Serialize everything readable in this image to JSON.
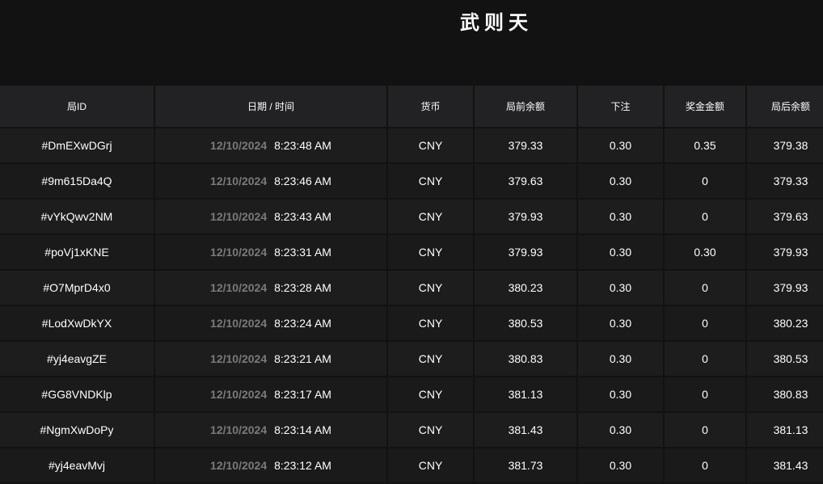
{
  "title": "武则天",
  "columns": [
    "局ID",
    "日期 / 时间",
    "货币",
    "局前余额",
    "下注",
    "奖金金额",
    "局后余额"
  ],
  "rows": [
    {
      "id": "#DmEXwDGrj",
      "date": "12/10/2024",
      "time": "8:23:48 AM",
      "currency": "CNY",
      "before": "379.33",
      "bet": "0.30",
      "win": "0.35",
      "after": "379.38"
    },
    {
      "id": "#9m615Da4Q",
      "date": "12/10/2024",
      "time": "8:23:46 AM",
      "currency": "CNY",
      "before": "379.63",
      "bet": "0.30",
      "win": "0",
      "after": "379.33"
    },
    {
      "id": "#vYkQwv2NM",
      "date": "12/10/2024",
      "time": "8:23:43 AM",
      "currency": "CNY",
      "before": "379.93",
      "bet": "0.30",
      "win": "0",
      "after": "379.63"
    },
    {
      "id": "#poVj1xKNE",
      "date": "12/10/2024",
      "time": "8:23:31 AM",
      "currency": "CNY",
      "before": "379.93",
      "bet": "0.30",
      "win": "0.30",
      "after": "379.93"
    },
    {
      "id": "#O7MprD4x0",
      "date": "12/10/2024",
      "time": "8:23:28 AM",
      "currency": "CNY",
      "before": "380.23",
      "bet": "0.30",
      "win": "0",
      "after": "379.93"
    },
    {
      "id": "#LodXwDkYX",
      "date": "12/10/2024",
      "time": "8:23:24 AM",
      "currency": "CNY",
      "before": "380.53",
      "bet": "0.30",
      "win": "0",
      "after": "380.23"
    },
    {
      "id": "#yj4eavgZE",
      "date": "12/10/2024",
      "time": "8:23:21 AM",
      "currency": "CNY",
      "before": "380.83",
      "bet": "0.30",
      "win": "0",
      "after": "380.53"
    },
    {
      "id": "#GG8VNDKlp",
      "date": "12/10/2024",
      "time": "8:23:17 AM",
      "currency": "CNY",
      "before": "381.13",
      "bet": "0.30",
      "win": "0",
      "after": "380.83"
    },
    {
      "id": "#NgmXwDoPy",
      "date": "12/10/2024",
      "time": "8:23:14 AM",
      "currency": "CNY",
      "before": "381.43",
      "bet": "0.30",
      "win": "0",
      "after": "381.13"
    },
    {
      "id": "#yj4eavMvj",
      "date": "12/10/2024",
      "time": "8:23:12 AM",
      "currency": "CNY",
      "before": "381.73",
      "bet": "0.30",
      "win": "0",
      "after": "381.43"
    }
  ]
}
